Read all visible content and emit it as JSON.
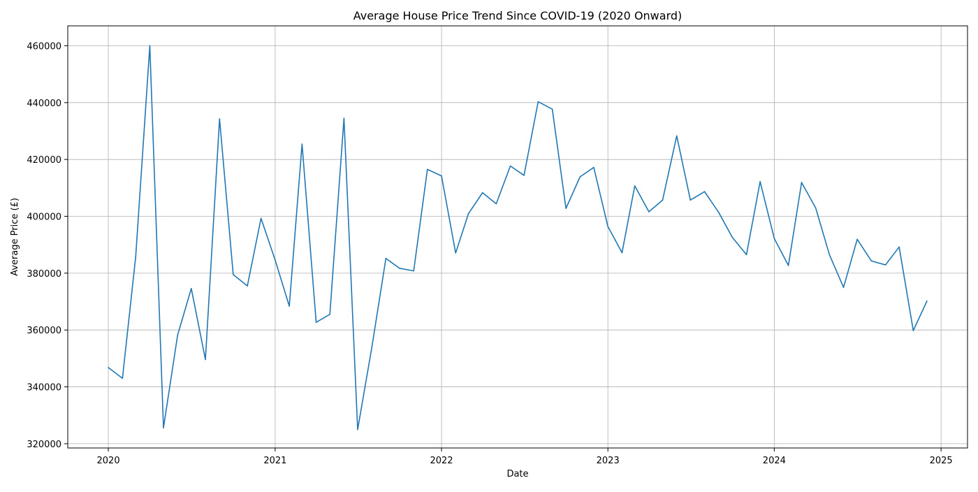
{
  "chart_data": {
    "type": "line",
    "title": "Average House Price Trend Since COVID-19 (2020 Onward)",
    "xlabel": "Date",
    "ylabel": "Average Price (£)",
    "xlim": [
      "2019-10-04",
      "2025-02-28"
    ],
    "ylim": [
      318500,
      467000
    ],
    "x_ticks": [
      "2020",
      "2021",
      "2022",
      "2023",
      "2024",
      "2025"
    ],
    "y_ticks": [
      320000,
      340000,
      360000,
      380000,
      400000,
      420000,
      440000,
      460000
    ],
    "grid": true,
    "line_color": "#1f77b4",
    "series": [
      {
        "x": [
          "2020-01-01",
          "2020-02-01",
          "2020-03-01",
          "2020-04-01",
          "2020-05-01",
          "2020-06-01",
          "2020-07-01",
          "2020-08-01",
          "2020-09-01",
          "2020-10-01",
          "2020-11-01",
          "2020-12-01",
          "2021-01-01",
          "2021-02-01",
          "2021-03-01",
          "2021-04-01",
          "2021-05-01",
          "2021-06-01",
          "2021-07-01",
          "2021-08-01",
          "2021-09-01",
          "2021-10-01",
          "2021-11-01",
          "2021-12-01",
          "2022-01-01",
          "2022-02-01",
          "2022-03-01",
          "2022-04-01",
          "2022-05-01",
          "2022-06-01",
          "2022-07-01",
          "2022-08-01",
          "2022-09-01",
          "2022-10-01",
          "2022-11-01",
          "2022-12-01",
          "2023-01-01",
          "2023-02-01",
          "2023-03-01",
          "2023-04-01",
          "2023-05-01",
          "2023-06-01",
          "2023-07-01",
          "2023-08-01",
          "2023-09-01",
          "2023-10-01",
          "2023-11-01",
          "2023-12-01",
          "2024-01-01",
          "2024-02-01",
          "2024-03-01",
          "2024-04-01",
          "2024-05-01",
          "2024-06-01",
          "2024-07-01",
          "2024-08-01",
          "2024-09-01",
          "2024-10-01",
          "2024-11-01",
          "2024-12-01"
        ],
        "values": [
          346800,
          343000,
          385700,
          460000,
          325600,
          358200,
          374600,
          349600,
          434300,
          379500,
          375500,
          399300,
          384600,
          368400,
          425400,
          362700,
          365500,
          434500,
          325000,
          353800,
          385200,
          381700,
          380800,
          416500,
          414200,
          387100,
          400900,
          408300,
          404400,
          417700,
          414400,
          440300,
          437700,
          402800,
          413900,
          417200,
          396400,
          387200,
          410700,
          401600,
          405700,
          428300,
          405700,
          408700,
          401400,
          392600,
          386500,
          412200,
          392200,
          382700,
          411900,
          402900,
          386500,
          375000,
          391900,
          384300,
          382900,
          389200,
          359800,
          370200
        ]
      }
    ]
  }
}
